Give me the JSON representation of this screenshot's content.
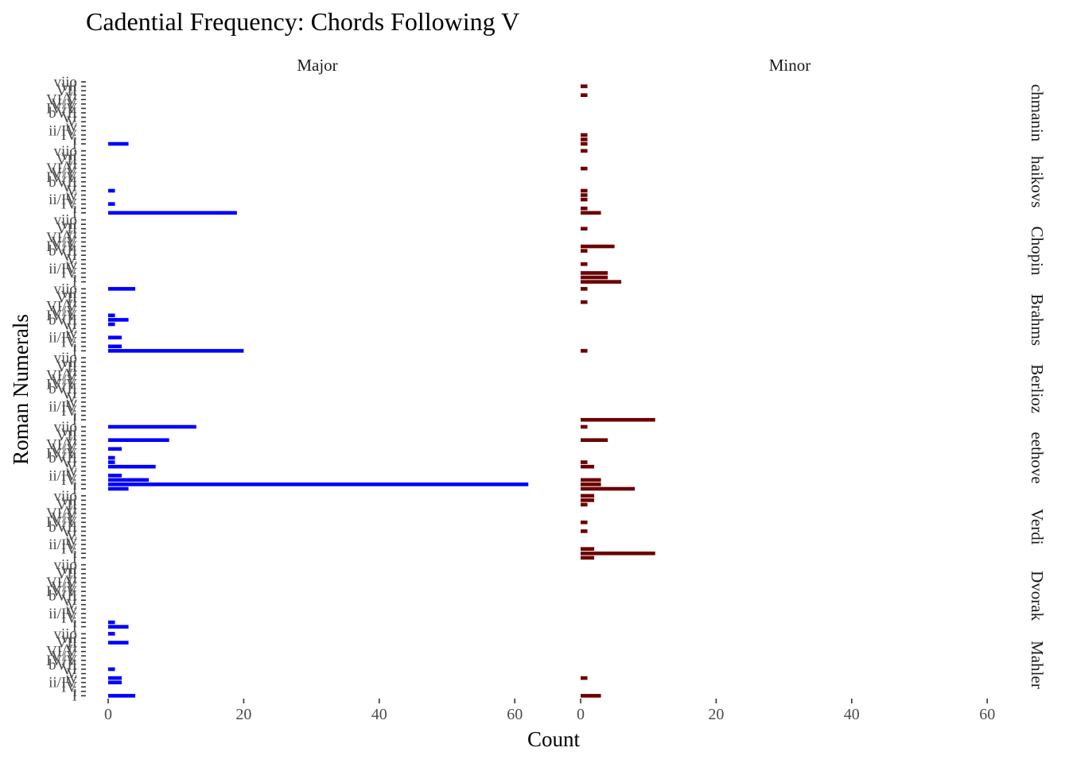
{
  "chart_data": {
    "type": "bar",
    "orientation": "horizontal",
    "title": "Cadential Frequency: Chords Following V",
    "xlabel": "Count",
    "ylabel": "Roman Numerals",
    "xlim": [
      0,
      65
    ],
    "xticks": [
      0,
      20,
      40,
      60
    ],
    "facet_columns": [
      "Major",
      "Minor"
    ],
    "facet_rows": [
      "Rachmaninoff",
      "Tchaikovsky",
      "Chopin",
      "Brahms",
      "Berlioz",
      "Beethoven",
      "Verdi",
      "Dvorak",
      "Mahler"
    ],
    "facet_row_labels": [
      "chmanin",
      "haikovs",
      "Chopin",
      "Brahms",
      "Berlioz",
      "eethove",
      "Verdi",
      "Dvorak",
      "Mahler"
    ],
    "categories": [
      "I",
      "i",
      "IV",
      "ii/IV",
      "iv",
      "V",
      "VI",
      "bVII",
      "IV/V",
      "V/V",
      "VI/V",
      "vi",
      "VII",
      "vii",
      "viio"
    ],
    "category_labels_shown": [
      "I",
      "ii/IV",
      "V",
      "VI",
      "viio"
    ],
    "colors": {
      "Major": "#0000ff",
      "Minor": "#6b0000"
    },
    "panels": [
      {
        "composer": "Rachmaninoff",
        "major": [
          3,
          0,
          0,
          0,
          0,
          0,
          0,
          0,
          0,
          0,
          0,
          0,
          0,
          0,
          0
        ],
        "minor": [
          1,
          1,
          1,
          0,
          0,
          0,
          0,
          0,
          0,
          0,
          0,
          1,
          0,
          1,
          0
        ]
      },
      {
        "composer": "Tchaikovsky",
        "major": [
          19,
          0,
          1,
          0,
          0,
          1,
          0,
          0,
          0,
          0,
          0,
          0,
          0,
          0,
          0
        ],
        "minor": [
          3,
          1,
          0,
          1,
          1,
          1,
          0,
          0,
          0,
          0,
          1,
          0,
          0,
          0,
          1
        ]
      },
      {
        "composer": "Chopin",
        "major": [
          0,
          0,
          0,
          0,
          0,
          0,
          0,
          0,
          0,
          0,
          0,
          0,
          0,
          0,
          0
        ],
        "minor": [
          6,
          4,
          4,
          0,
          1,
          0,
          0,
          1,
          5,
          0,
          0,
          0,
          1,
          0,
          0
        ]
      },
      {
        "composer": "Brahms",
        "major": [
          20,
          2,
          0,
          2,
          0,
          0,
          1,
          3,
          1,
          0,
          0,
          0,
          0,
          0,
          4
        ],
        "minor": [
          1,
          0,
          0,
          0,
          0,
          0,
          0,
          0,
          0,
          0,
          0,
          1,
          0,
          0,
          1
        ]
      },
      {
        "composer": "Berlioz",
        "major": [
          0,
          0,
          0,
          0,
          0,
          0,
          0,
          0,
          0,
          0,
          0,
          0,
          0,
          0,
          0
        ],
        "minor": [
          11,
          0,
          0,
          0,
          0,
          0,
          0,
          0,
          0,
          0,
          0,
          0,
          0,
          0,
          0
        ]
      },
      {
        "composer": "Beethoven",
        "major": [
          3,
          62,
          6,
          2,
          0,
          7,
          1,
          1,
          0,
          2,
          0,
          9,
          0,
          0,
          13
        ],
        "minor": [
          8,
          3,
          3,
          0,
          0,
          2,
          1,
          0,
          0,
          0,
          0,
          4,
          0,
          0,
          1
        ]
      },
      {
        "composer": "Verdi",
        "major": [
          0,
          0,
          0,
          0,
          0,
          0,
          0,
          0,
          0,
          0,
          0,
          0,
          0,
          0,
          0
        ],
        "minor": [
          2,
          11,
          2,
          0,
          0,
          0,
          1,
          0,
          1,
          0,
          0,
          0,
          1,
          2,
          2
        ]
      },
      {
        "composer": "Dvorak",
        "major": [
          3,
          1,
          0,
          0,
          0,
          0,
          0,
          0,
          0,
          0,
          0,
          0,
          0,
          0,
          0
        ],
        "minor": [
          0,
          0,
          0,
          0,
          0,
          0,
          0,
          0,
          0,
          0,
          0,
          0,
          0,
          0,
          0
        ]
      },
      {
        "composer": "Mahler",
        "major": [
          4,
          0,
          0,
          2,
          2,
          0,
          1,
          0,
          0,
          0,
          0,
          0,
          3,
          0,
          1
        ],
        "minor": [
          3,
          0,
          0,
          0,
          1,
          0,
          0,
          0,
          0,
          0,
          0,
          0,
          0,
          0,
          0
        ]
      }
    ],
    "grid": false,
    "legend": "none"
  }
}
